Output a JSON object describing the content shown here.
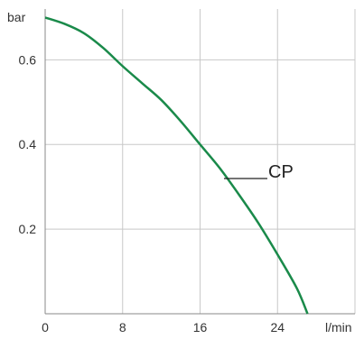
{
  "chart_data": {
    "type": "line",
    "xlabel": "l/min",
    "ylabel": "bar",
    "xlim": [
      0,
      32
    ],
    "ylim": [
      0,
      0.72
    ],
    "xticks": [
      0,
      8,
      16,
      24
    ],
    "xtick_labels": [
      "0",
      "8",
      "16",
      "24"
    ],
    "yticks": [
      0.2,
      0.4,
      0.6
    ],
    "ytick_labels": [
      "0.2",
      "0.4",
      "0.6"
    ],
    "grid": true,
    "series": [
      {
        "name": "CP",
        "color": "#1a8a4a",
        "x": [
          0,
          2,
          4,
          6,
          8,
          10,
          12,
          14,
          16,
          18,
          20,
          22,
          24,
          26,
          27.1
        ],
        "y": [
          0.7,
          0.685,
          0.663,
          0.628,
          0.585,
          0.545,
          0.505,
          0.455,
          0.4,
          0.345,
          0.282,
          0.215,
          0.14,
          0.06,
          0.0
        ]
      }
    ]
  }
}
